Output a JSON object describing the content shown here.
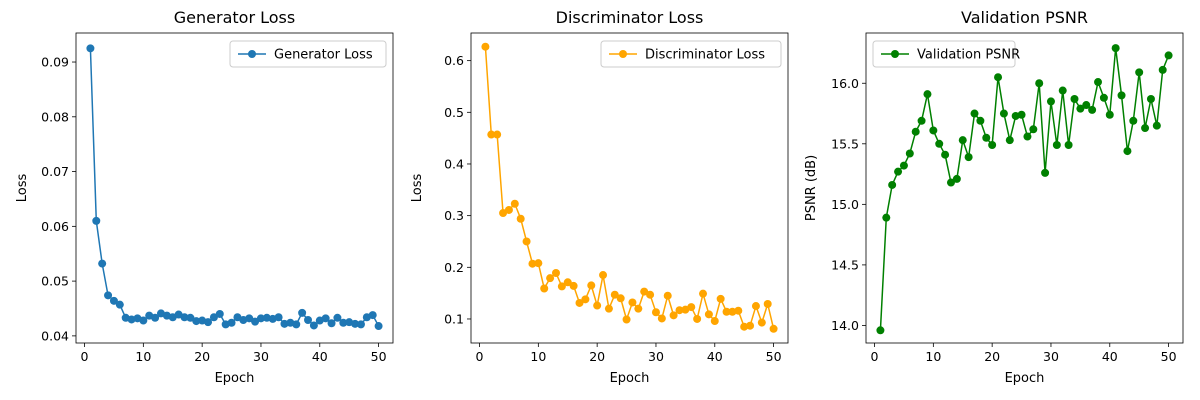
{
  "chart_data": [
    {
      "type": "line",
      "title": "Generator Loss",
      "xlabel": "Epoch",
      "ylabel": "Loss",
      "xlim": [
        -1.45,
        52.45
      ],
      "ylim": [
        0.0387,
        0.0953
      ],
      "xticks": [
        0,
        10,
        20,
        30,
        40,
        50
      ],
      "yticks": [
        0.04,
        0.05,
        0.06,
        0.07,
        0.08,
        0.09
      ],
      "ytick_labels": [
        "0.04",
        "0.05",
        "0.06",
        "0.07",
        "0.08",
        "0.09"
      ],
      "legend_position": "top-right",
      "grid": false,
      "series": [
        {
          "name": "Generator Loss",
          "color": "#1f77b4",
          "x": [
            1,
            2,
            3,
            4,
            5,
            6,
            7,
            8,
            9,
            10,
            11,
            12,
            13,
            14,
            15,
            16,
            17,
            18,
            19,
            20,
            21,
            22,
            23,
            24,
            25,
            26,
            27,
            28,
            29,
            30,
            31,
            32,
            33,
            34,
            35,
            36,
            37,
            38,
            39,
            40,
            41,
            42,
            43,
            44,
            45,
            46,
            47,
            48,
            49,
            50
          ],
          "y": [
            0.0925,
            0.061,
            0.0532,
            0.0474,
            0.0464,
            0.0457,
            0.0433,
            0.043,
            0.0432,
            0.0428,
            0.0437,
            0.0433,
            0.0441,
            0.0437,
            0.0434,
            0.0439,
            0.0434,
            0.0433,
            0.0427,
            0.0428,
            0.0425,
            0.0434,
            0.044,
            0.0421,
            0.0424,
            0.0434,
            0.0429,
            0.0432,
            0.0426,
            0.0432,
            0.0433,
            0.0431,
            0.0434,
            0.0422,
            0.0424,
            0.0421,
            0.0442,
            0.0429,
            0.0419,
            0.0428,
            0.0432,
            0.0423,
            0.0433,
            0.0424,
            0.0425,
            0.0422,
            0.0421,
            0.0434,
            0.0438,
            0.0418
          ]
        }
      ]
    },
    {
      "type": "line",
      "title": "Discriminator Loss",
      "xlabel": "Epoch",
      "ylabel": "Loss",
      "xlim": [
        -1.45,
        52.45
      ],
      "ylim": [
        0.0535,
        0.6535
      ],
      "xticks": [
        0,
        10,
        20,
        30,
        40,
        50
      ],
      "yticks": [
        0.1,
        0.2,
        0.3,
        0.4,
        0.5,
        0.6
      ],
      "ytick_labels": [
        "0.1",
        "0.2",
        "0.3",
        "0.4",
        "0.5",
        "0.6"
      ],
      "legend_position": "top-right",
      "grid": false,
      "series": [
        {
          "name": "Discriminator Loss",
          "color": "#ffa500",
          "x": [
            1,
            2,
            3,
            4,
            5,
            6,
            7,
            8,
            9,
            10,
            11,
            12,
            13,
            14,
            15,
            16,
            17,
            18,
            19,
            20,
            21,
            22,
            23,
            24,
            25,
            26,
            27,
            28,
            29,
            30,
            31,
            32,
            33,
            34,
            35,
            36,
            37,
            38,
            39,
            40,
            41,
            42,
            43,
            44,
            45,
            46,
            47,
            48,
            49,
            50
          ],
          "y": [
            0.627,
            0.457,
            0.457,
            0.305,
            0.311,
            0.323,
            0.294,
            0.25,
            0.207,
            0.208,
            0.159,
            0.179,
            0.189,
            0.163,
            0.171,
            0.164,
            0.131,
            0.138,
            0.165,
            0.126,
            0.185,
            0.12,
            0.147,
            0.14,
            0.099,
            0.132,
            0.12,
            0.153,
            0.147,
            0.113,
            0.101,
            0.145,
            0.107,
            0.117,
            0.118,
            0.123,
            0.1,
            0.149,
            0.109,
            0.096,
            0.139,
            0.114,
            0.114,
            0.116,
            0.085,
            0.087,
            0.125,
            0.093,
            0.129,
            0.081
          ]
        }
      ]
    },
    {
      "type": "line",
      "title": "Validation PSNR",
      "xlabel": "Epoch",
      "ylabel": "PSNR (dB)",
      "xlim": [
        -1.45,
        52.45
      ],
      "ylim": [
        13.855,
        16.415
      ],
      "xticks": [
        0,
        10,
        20,
        30,
        40,
        50
      ],
      "yticks": [
        14.0,
        14.5,
        15.0,
        15.5,
        16.0
      ],
      "ytick_labels": [
        "14.0",
        "14.5",
        "15.0",
        "15.5",
        "16.0"
      ],
      "legend_position": "top-left",
      "grid": false,
      "series": [
        {
          "name": "Validation PSNR",
          "color": "#008000",
          "x": [
            1,
            2,
            3,
            4,
            5,
            6,
            7,
            8,
            9,
            10,
            11,
            12,
            13,
            14,
            15,
            16,
            17,
            18,
            19,
            20,
            21,
            22,
            23,
            24,
            25,
            26,
            27,
            28,
            29,
            30,
            31,
            32,
            33,
            34,
            35,
            36,
            37,
            38,
            39,
            40,
            41,
            42,
            43,
            44,
            45,
            46,
            47,
            48,
            49,
            50
          ],
          "y": [
            13.96,
            14.89,
            15.16,
            15.27,
            15.32,
            15.42,
            15.6,
            15.69,
            15.91,
            15.61,
            15.5,
            15.41,
            15.18,
            15.21,
            15.53,
            15.39,
            15.75,
            15.69,
            15.55,
            15.49,
            16.05,
            15.75,
            15.53,
            15.73,
            15.74,
            15.56,
            15.62,
            16.0,
            15.26,
            15.85,
            15.49,
            15.94,
            15.49,
            15.87,
            15.79,
            15.82,
            15.78,
            16.01,
            15.88,
            15.74,
            16.29,
            15.9,
            15.44,
            15.69,
            16.09,
            15.63,
            15.87,
            15.65,
            16.11,
            16.23
          ]
        }
      ]
    }
  ]
}
